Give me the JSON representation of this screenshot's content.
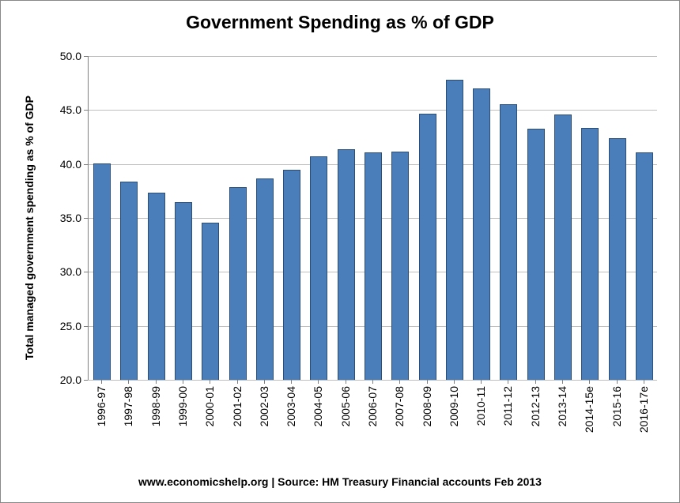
{
  "chart": {
    "type": "bar",
    "title": "Government Spending as % of GDP",
    "title_fontsize": 23,
    "ylabel": "Total managed government spending as % of GDP",
    "ylabel_fontsize": 14,
    "source_line": "www.economicshelp.org | Source:  HM Treasury Financial accounts Feb 2013",
    "source_fontsize": 14,
    "categories": [
      "1996-97",
      "1997-98",
      "1998-99",
      "1999-00",
      "2000-01",
      "2001-02",
      "2002-03",
      "2003-04",
      "2004-05",
      "2005-06",
      "2006-07",
      "2007-08",
      "2008-09",
      "2009-10",
      "2010-11",
      "2011-12",
      "2012-13",
      "2013-14",
      "2014-15e",
      "2015-16",
      "2016-17e"
    ],
    "values": [
      40.0,
      38.3,
      37.3,
      36.4,
      34.5,
      37.8,
      38.6,
      39.4,
      40.6,
      41.3,
      41.0,
      41.1,
      44.6,
      47.7,
      46.9,
      45.5,
      43.2,
      44.5,
      43.3,
      42.3,
      41.0
    ],
    "bar_color": "#4a7ebb",
    "bar_border_color": "#2c4d75",
    "ylim": [
      20.0,
      50.0
    ],
    "ytick_step": 5.0,
    "ytick_labels": [
      "20.0",
      "25.0",
      "30.0",
      "35.0",
      "40.0",
      "45.0",
      "50.0"
    ],
    "tick_fontsize": 14,
    "xtick_fontsize": 14,
    "grid_color": "#bfbfbf",
    "axis_color": "#808080",
    "background_color": "#ffffff",
    "bar_width_ratio": 0.58,
    "show_horizontal_grid": true
  }
}
